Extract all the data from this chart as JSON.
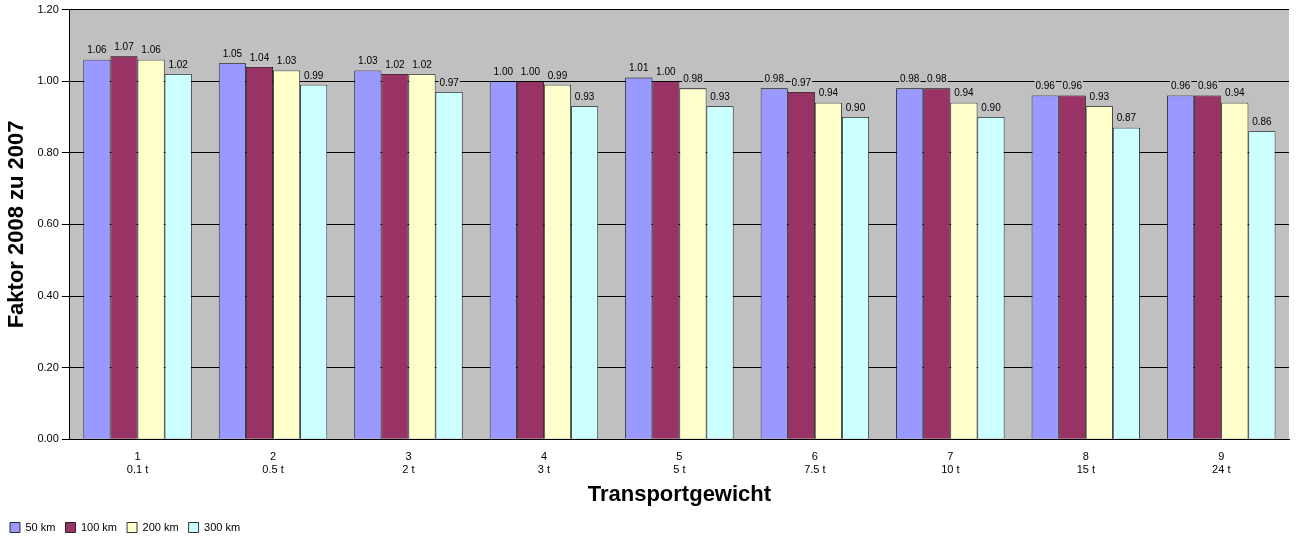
{
  "chart_data": {
    "type": "bar",
    "xlabel": "Transportgewicht",
    "ylabel": "Faktor 2008 zu 2007",
    "categories": [
      "1\n0.1 t",
      "2\n0.5 t",
      "3\n2 t",
      "4\n3 t",
      "5\n5 t",
      "6\n7.5 t",
      "7\n10 t",
      "8\n15 t",
      "9\n24 t"
    ],
    "series": [
      {
        "name": "50 km",
        "color": "#9999ff",
        "values": [
          1.06,
          1.05,
          1.03,
          1.0,
          1.01,
          0.98,
          0.98,
          0.96,
          0.96
        ],
        "value_labels": [
          "1.06",
          "1.05",
          "1.03",
          "1.00",
          "1.01",
          "0.98",
          "0.98",
          "0.96",
          "0.96"
        ]
      },
      {
        "name": "100 km",
        "color": "#993366",
        "values": [
          1.07,
          1.04,
          1.02,
          1.0,
          1.0,
          0.97,
          0.98,
          0.96,
          0.96
        ],
        "value_labels": [
          "1.07",
          "1.04",
          "1.02",
          "1.00",
          "1.00",
          "0.97",
          "0.98",
          "0.96",
          "0.96"
        ]
      },
      {
        "name": "200 km",
        "color": "#ffffcc",
        "values": [
          1.06,
          1.03,
          1.02,
          0.99,
          0.98,
          0.94,
          0.94,
          0.93,
          0.94
        ],
        "value_labels": [
          "1.06",
          "1.03",
          "1.02",
          "0.99",
          "0.98",
          "0.94",
          "0.94",
          "0.93",
          "0.94"
        ]
      },
      {
        "name": "300 km",
        "color": "#ccffff",
        "values": [
          1.02,
          0.99,
          0.97,
          0.93,
          0.93,
          0.9,
          0.9,
          0.87,
          0.86
        ],
        "value_labels": [
          "1.02",
          "0.99",
          "0.97",
          "0.93",
          "0.93",
          "0.90",
          "0.90",
          "0.87",
          "0.86"
        ]
      }
    ],
    "ylim": [
      0,
      1.2
    ],
    "yticks": [
      {
        "value": 0,
        "label": "0.00"
      },
      {
        "value": 0.2,
        "label": "0.20"
      },
      {
        "value": 0.4,
        "label": "0.40"
      },
      {
        "value": 0.6,
        "label": "0.60"
      },
      {
        "value": 0.8,
        "label": "0.80"
      },
      {
        "value": 1.0,
        "label": "1.00"
      },
      {
        "value": 1.2,
        "label": "1.20"
      }
    ],
    "grid": "y",
    "legend": "bottom left"
  }
}
